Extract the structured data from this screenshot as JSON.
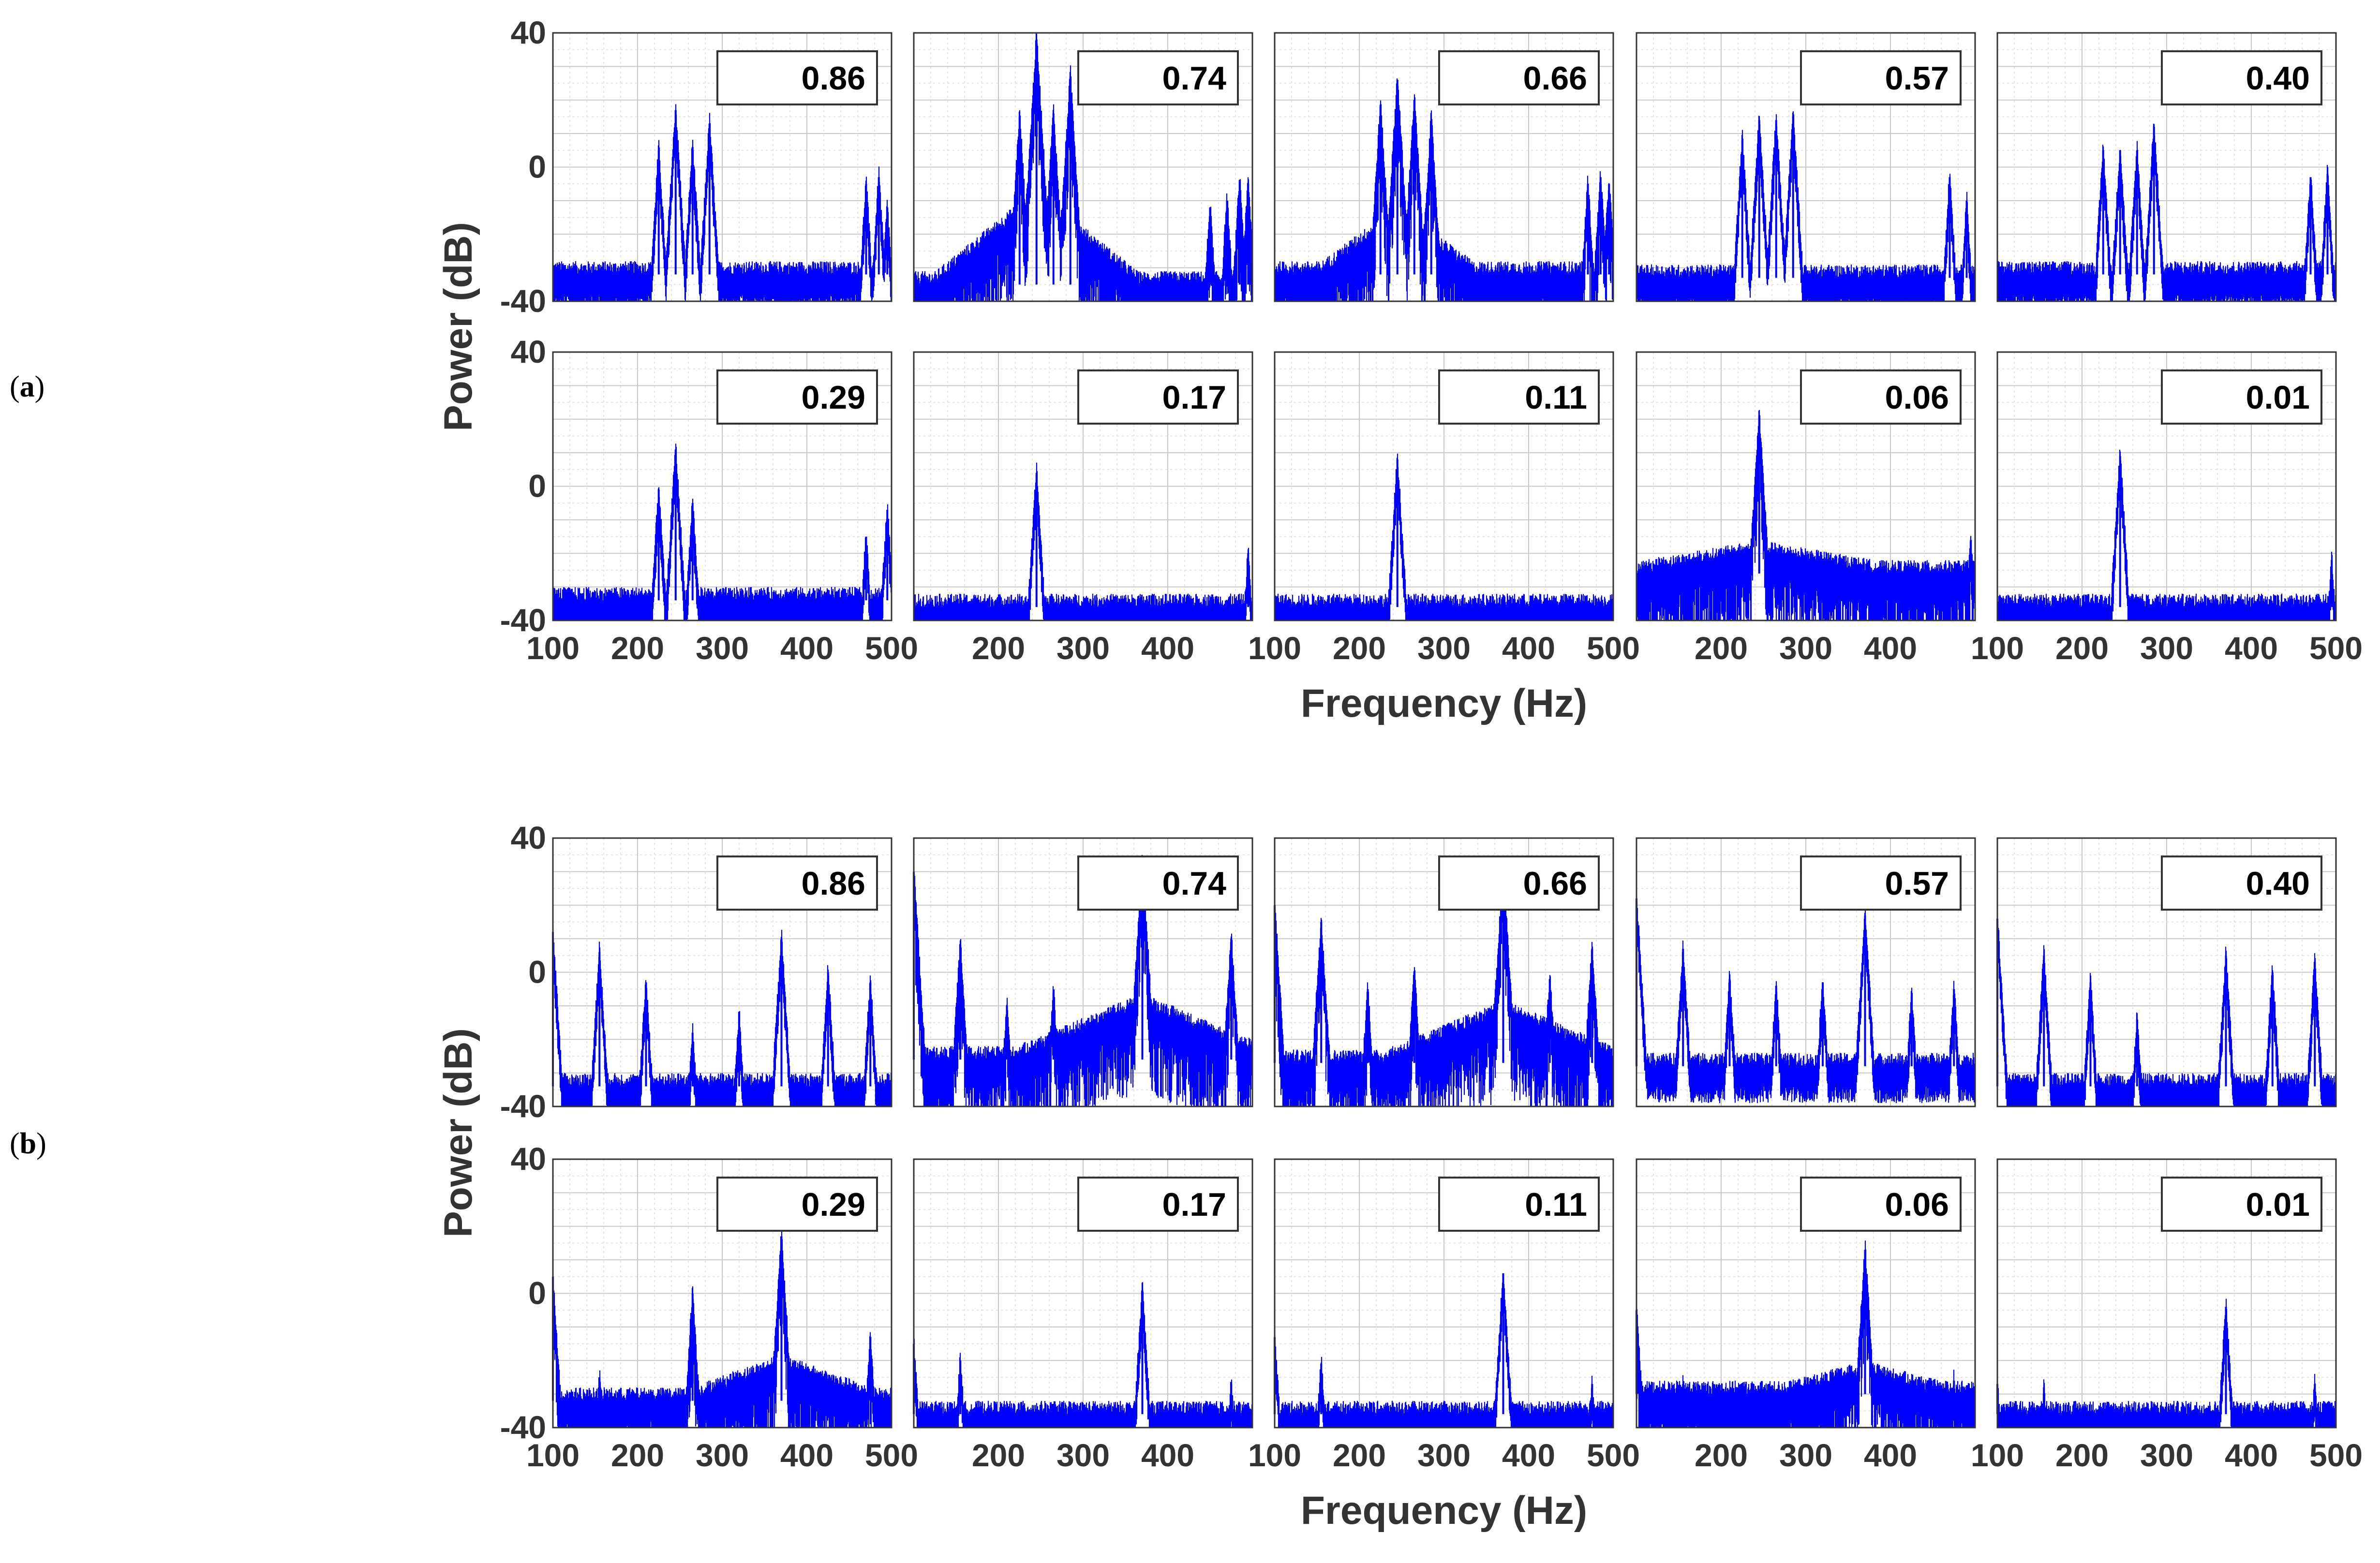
{
  "figure": {
    "panels": [
      {
        "label_open": "(",
        "label_letter": "a",
        "label_close": ")"
      },
      {
        "label_open": "(",
        "label_letter": "b",
        "label_close": ")"
      }
    ],
    "ylabel": "Power (dB)",
    "xlabel": "Frequency (Hz)",
    "trace_color": "#0000ff"
  },
  "chart_data": [
    {
      "type": "line",
      "panel": "a",
      "title": "",
      "xlabel": "Frequency (Hz)",
      "ylabel": "Power (dB)",
      "xlim": [
        100,
        500
      ],
      "ylim": [
        -40,
        40
      ],
      "yticks": [
        "40",
        "0",
        "-40"
      ],
      "xticks": [
        "100",
        "200",
        "300",
        "400",
        "500"
      ],
      "grid": true,
      "subplots": [
        {
          "annotation": "0.86",
          "noise_floor": -32,
          "peaks": [
            [
              225,
              5
            ],
            [
              245,
              17
            ],
            [
              265,
              6
            ],
            [
              285,
              13
            ],
            [
              470,
              -5
            ],
            [
              485,
              -3
            ],
            [
              495,
              -12
            ]
          ]
        },
        {
          "annotation": "0.74",
          "noise_floor": -35,
          "hump": {
            "center": 245,
            "level": -10,
            "width": 120
          },
          "peaks": [
            [
              225,
              15
            ],
            [
              245,
              38
            ],
            [
              265,
              16
            ],
            [
              285,
              27
            ],
            [
              450,
              -12
            ],
            [
              470,
              -10
            ],
            [
              485,
              -4
            ],
            [
              495,
              -5
            ]
          ]
        },
        {
          "annotation": "0.66",
          "noise_floor": -32,
          "hump": {
            "center": 245,
            "level": -15,
            "width": 90
          },
          "peaks": [
            [
              225,
              18
            ],
            [
              245,
              26
            ],
            [
              265,
              20
            ],
            [
              285,
              14
            ],
            [
              470,
              -5
            ],
            [
              485,
              -3
            ],
            [
              495,
              -5
            ]
          ]
        },
        {
          "annotation": "0.57",
          "noise_floor": -33,
          "peaks": [
            [
              225,
              8
            ],
            [
              245,
              14
            ],
            [
              265,
              14
            ],
            [
              285,
              15
            ],
            [
              470,
              -3
            ],
            [
              490,
              -10
            ]
          ]
        },
        {
          "annotation": "0.40",
          "noise_floor": -32,
          "peaks": [
            [
              225,
              5
            ],
            [
              245,
              5
            ],
            [
              265,
              5
            ],
            [
              285,
              12
            ],
            [
              470,
              -3
            ],
            [
              490,
              -2
            ]
          ]
        },
        {
          "annotation": "0.29",
          "noise_floor": -34,
          "peaks": [
            [
              225,
              -1
            ],
            [
              245,
              11
            ],
            [
              265,
              -5
            ],
            [
              470,
              -15
            ],
            [
              495,
              -7
            ]
          ]
        },
        {
          "annotation": "0.17",
          "noise_floor": -36,
          "peaks": [
            [
              245,
              4
            ],
            [
              495,
              -20
            ]
          ]
        },
        {
          "annotation": "0.11",
          "noise_floor": -36,
          "peaks": [
            [
              245,
              8
            ]
          ]
        },
        {
          "annotation": "0.06",
          "noise_floor": -26,
          "hump": {
            "center": 245,
            "level": -20,
            "width": 140
          },
          "peaks": [
            [
              245,
              21
            ],
            [
              495,
              -16
            ]
          ]
        },
        {
          "annotation": "0.01",
          "noise_floor": -36,
          "peaks": [
            [
              245,
              9
            ],
            [
              495,
              -22
            ]
          ]
        }
      ]
    },
    {
      "type": "line",
      "panel": "b",
      "title": "",
      "xlabel": "Frequency (Hz)",
      "ylabel": "Power (dB)",
      "xlim": [
        100,
        500
      ],
      "ylim": [
        -40,
        40
      ],
      "yticks": [
        "40",
        "0",
        "-40"
      ],
      "xticks": [
        "100",
        "200",
        "300",
        "400",
        "500"
      ],
      "grid": true,
      "subplots": [
        {
          "annotation": "0.86",
          "noise_floor": -34,
          "peaks": [
            [
              100,
              12
            ],
            [
              155,
              6
            ],
            [
              210,
              -3
            ],
            [
              265,
              -18
            ],
            [
              320,
              -13
            ],
            [
              370,
              10
            ],
            [
              425,
              0
            ],
            [
              475,
              -3
            ]
          ]
        },
        {
          "annotation": "0.74",
          "noise_floor": -26,
          "hump": {
            "center": 370,
            "level": -10,
            "width": 150
          },
          "peaks": [
            [
              100,
              30
            ],
            [
              155,
              8
            ],
            [
              210,
              -10
            ],
            [
              265,
              -6
            ],
            [
              370,
              33
            ],
            [
              475,
              10
            ]
          ]
        },
        {
          "annotation": "0.66",
          "noise_floor": -27,
          "hump": {
            "center": 370,
            "level": -12,
            "width": 140
          },
          "peaks": [
            [
              100,
              20
            ],
            [
              155,
              15
            ],
            [
              210,
              -5
            ],
            [
              265,
              0
            ],
            [
              370,
              31
            ],
            [
              425,
              -2
            ],
            [
              475,
              7
            ]
          ]
        },
        {
          "annotation": "0.57",
          "noise_floor": -28,
          "peaks": [
            [
              100,
              22
            ],
            [
              155,
              7
            ],
            [
              210,
              -2
            ],
            [
              265,
              -4
            ],
            [
              320,
              -3
            ],
            [
              370,
              17
            ],
            [
              425,
              -7
            ],
            [
              475,
              -5
            ]
          ]
        },
        {
          "annotation": "0.40",
          "noise_floor": -34,
          "peaks": [
            [
              100,
              16
            ],
            [
              155,
              5
            ],
            [
              210,
              -3
            ],
            [
              265,
              -14
            ],
            [
              370,
              5
            ],
            [
              425,
              0
            ],
            [
              475,
              3
            ]
          ]
        },
        {
          "annotation": "0.29",
          "noise_floor": -32,
          "hump": {
            "center": 370,
            "level": -22,
            "width": 110
          },
          "peaks": [
            [
              100,
              5
            ],
            [
              155,
              -25
            ],
            [
              265,
              0
            ],
            [
              370,
              17
            ],
            [
              475,
              -13
            ]
          ]
        },
        {
          "annotation": "0.17",
          "noise_floor": -36,
          "peaks": [
            [
              100,
              -15
            ],
            [
              155,
              -20
            ],
            [
              370,
              1
            ],
            [
              475,
              -27
            ]
          ]
        },
        {
          "annotation": "0.11",
          "noise_floor": -36,
          "peaks": [
            [
              100,
              -13
            ],
            [
              155,
              -21
            ],
            [
              370,
              6
            ],
            [
              475,
              -27
            ]
          ]
        },
        {
          "annotation": "0.06",
          "noise_floor": -30,
          "hump": {
            "center": 370,
            "level": -24,
            "width": 90
          },
          "peaks": [
            [
              100,
              -5
            ],
            [
              155,
              -27
            ],
            [
              370,
              13
            ],
            [
              475,
              -26
            ]
          ]
        },
        {
          "annotation": "0.01",
          "noise_floor": -36,
          "peaks": [
            [
              100,
              -27
            ],
            [
              155,
              -28
            ],
            [
              370,
              -4
            ],
            [
              475,
              -27
            ]
          ]
        }
      ]
    }
  ]
}
